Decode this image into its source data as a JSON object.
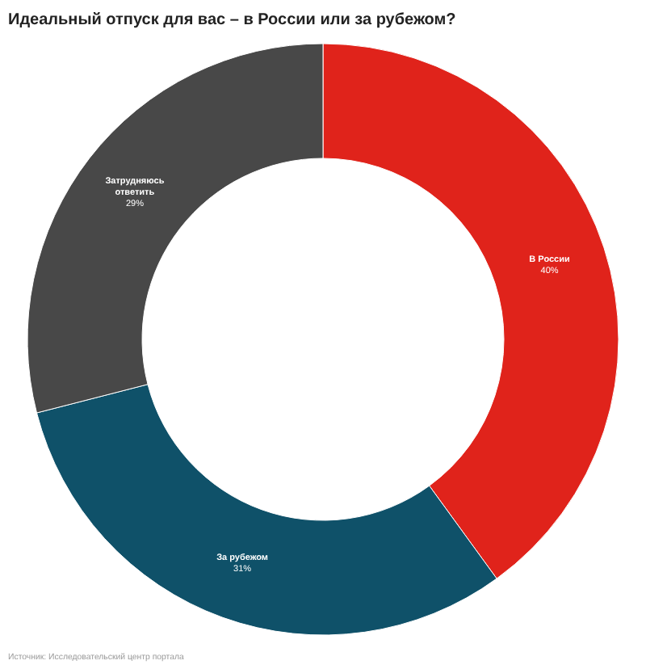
{
  "chart_data": {
    "type": "donut",
    "title": "Идеальный отпуск для вас – в России или за рубежом?",
    "categories": [
      "В России",
      "За рубежом",
      "Затрудняюсь ответить"
    ],
    "values": [
      40,
      31,
      29
    ],
    "colors": [
      "#e0231b",
      "#0f5169",
      "#484848"
    ],
    "value_labels": [
      "40%",
      "31%",
      "29%"
    ],
    "annotations": [
      "Источник: Исследовательский центр портала"
    ]
  }
}
